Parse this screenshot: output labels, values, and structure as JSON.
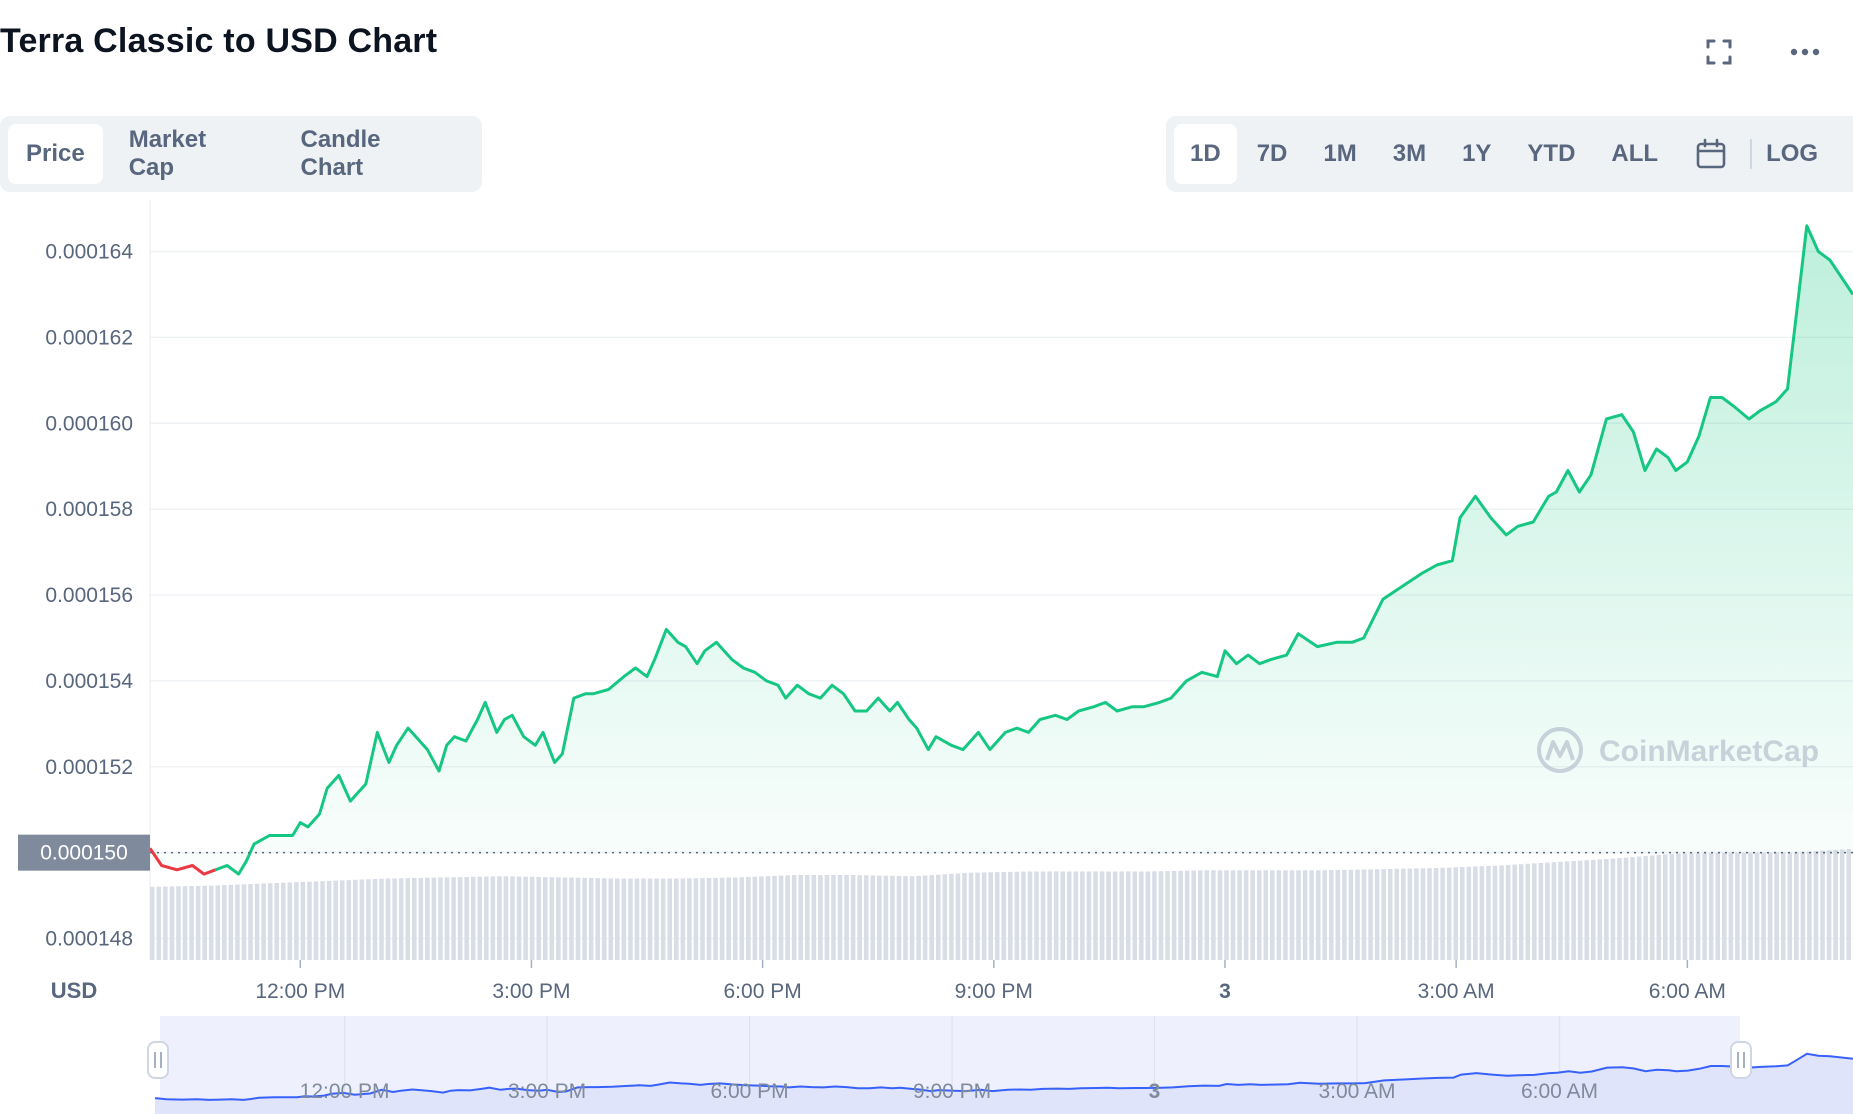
{
  "title": "Terra Classic to USD Chart",
  "tabs": [
    {
      "label": "Price",
      "active": true
    },
    {
      "label": "Market Cap",
      "active": false
    },
    {
      "label": "Candle Chart",
      "active": false
    }
  ],
  "ranges": [
    {
      "label": "1D",
      "active": true
    },
    {
      "label": "7D",
      "active": false
    },
    {
      "label": "1M",
      "active": false
    },
    {
      "label": "3M",
      "active": false
    },
    {
      "label": "1Y",
      "active": false
    },
    {
      "label": "YTD",
      "active": false
    },
    {
      "label": "ALL",
      "active": false
    }
  ],
  "log_label": "LOG",
  "icons": {
    "fullscreen": "expand-icon",
    "more": "more-icon",
    "calendar": "calendar-icon"
  },
  "watermark": "CoinMarketCap",
  "chart_data": {
    "type": "area",
    "currency_label": "USD",
    "y_ticks": [
      "0.000148",
      "0.000150",
      "0.000152",
      "0.000154",
      "0.000156",
      "0.000158",
      "0.000160",
      "0.000162",
      "0.000164"
    ],
    "y_tick_values": [
      0.000148,
      0.00015,
      0.000152,
      0.000154,
      0.000156,
      0.000158,
      0.00016,
      0.000162,
      0.000164
    ],
    "ylim": [
      0.0001475,
      0.0001652
    ],
    "reference_price": 0.00015,
    "reference_label": "0.000150",
    "x_ticks": [
      {
        "label": "12:00 PM",
        "t": 12,
        "bold": false
      },
      {
        "label": "3:00 PM",
        "t": 15,
        "bold": false
      },
      {
        "label": "6:00 PM",
        "t": 18,
        "bold": false
      },
      {
        "label": "9:00 PM",
        "t": 21,
        "bold": false
      },
      {
        "label": "3",
        "t": 24,
        "bold": true
      },
      {
        "label": "3:00 AM",
        "t": 27,
        "bold": false
      },
      {
        "label": "6:00 AM",
        "t": 30,
        "bold": false
      }
    ],
    "xlim": [
      10.05,
      32.15
    ],
    "series": [
      {
        "t": [
          10.05,
          10.2,
          10.4,
          10.6,
          10.75,
          10.9,
          11.05,
          11.2,
          11.3,
          11.4,
          11.5,
          11.6,
          11.75,
          11.9,
          12.0,
          12.1,
          12.25,
          12.35,
          12.5,
          12.65,
          12.75,
          12.85,
          13.0,
          13.15,
          13.25,
          13.4,
          13.5,
          13.65,
          13.8,
          13.9,
          14.0,
          14.15,
          14.3,
          14.4,
          14.55,
          14.65,
          14.75,
          14.9,
          15.05,
          15.15,
          15.3,
          15.4,
          15.55,
          15.7,
          15.8,
          16.0,
          16.2,
          16.35,
          16.5,
          16.6,
          16.75,
          16.9,
          17.0,
          17.15,
          17.25,
          17.4,
          17.6,
          17.75,
          17.9,
          18.05,
          18.2,
          18.3,
          18.45,
          18.6,
          18.75,
          18.9,
          19.05,
          19.2,
          19.35,
          19.5,
          19.65,
          19.75,
          19.9,
          20.0,
          20.15,
          20.25,
          20.45,
          20.6,
          20.8,
          20.95,
          21.15,
          21.3,
          21.45,
          21.6,
          21.8,
          21.95,
          22.1,
          22.3,
          22.45,
          22.6,
          22.8,
          22.95,
          23.15,
          23.3,
          23.5,
          23.7,
          23.9,
          24.0,
          24.15,
          24.3,
          24.45,
          24.6,
          24.8,
          24.95,
          25.2,
          25.45,
          25.65,
          25.8,
          26.05,
          26.3,
          26.55,
          26.75,
          26.95,
          27.05,
          27.25,
          27.45,
          27.65,
          27.8,
          28.0,
          28.2,
          28.3,
          28.45,
          28.6,
          28.75,
          28.95,
          29.15,
          29.3,
          29.45,
          29.6,
          29.75,
          29.85,
          30.0,
          30.15,
          30.3,
          30.45,
          30.6,
          30.8,
          30.95,
          31.15,
          31.3,
          31.4,
          31.55,
          31.7,
          31.85,
          32.15
        ],
        "v": [
          0.0001501,
          0.0001497,
          0.0001496,
          0.0001497,
          0.0001495,
          0.0001496,
          0.0001497,
          0.0001495,
          0.0001498,
          0.0001502,
          0.0001503,
          0.0001504,
          0.0001504,
          0.0001504,
          0.0001507,
          0.0001506,
          0.0001509,
          0.0001515,
          0.0001518,
          0.0001512,
          0.0001514,
          0.0001516,
          0.0001528,
          0.0001521,
          0.0001525,
          0.0001529,
          0.0001527,
          0.0001524,
          0.0001519,
          0.0001525,
          0.0001527,
          0.0001526,
          0.0001531,
          0.0001535,
          0.0001528,
          0.0001531,
          0.0001532,
          0.0001527,
          0.0001525,
          0.0001528,
          0.0001521,
          0.0001523,
          0.0001536,
          0.0001537,
          0.0001537,
          0.0001538,
          0.0001541,
          0.0001543,
          0.0001541,
          0.0001545,
          0.0001552,
          0.0001549,
          0.0001548,
          0.0001544,
          0.0001547,
          0.0001549,
          0.0001545,
          0.0001543,
          0.0001542,
          0.000154,
          0.0001539,
          0.0001536,
          0.0001539,
          0.0001537,
          0.0001536,
          0.0001539,
          0.0001537,
          0.0001533,
          0.0001533,
          0.0001536,
          0.0001533,
          0.0001535,
          0.0001531,
          0.0001529,
          0.0001524,
          0.0001527,
          0.0001525,
          0.0001524,
          0.0001528,
          0.0001524,
          0.0001528,
          0.0001529,
          0.0001528,
          0.0001531,
          0.0001532,
          0.0001531,
          0.0001533,
          0.0001534,
          0.0001535,
          0.0001533,
          0.0001534,
          0.0001534,
          0.0001535,
          0.0001536,
          0.000154,
          0.0001542,
          0.0001541,
          0.0001547,
          0.0001544,
          0.0001546,
          0.0001544,
          0.0001545,
          0.0001546,
          0.0001551,
          0.0001548,
          0.0001549,
          0.0001549,
          0.000155,
          0.0001559,
          0.0001562,
          0.0001565,
          0.0001567,
          0.0001568,
          0.0001578,
          0.0001583,
          0.0001578,
          0.0001574,
          0.0001576,
          0.0001577,
          0.0001583,
          0.0001584,
          0.0001589,
          0.0001584,
          0.0001588,
          0.0001601,
          0.0001602,
          0.0001598,
          0.0001589,
          0.0001594,
          0.0001592,
          0.0001589,
          0.0001591,
          0.0001597,
          0.0001606,
          0.0001606,
          0.0001604,
          0.0001601,
          0.0001603,
          0.0001605,
          0.0001608,
          0.0001623,
          0.0001646,
          0.000164,
          0.0001638,
          0.000163
        ]
      }
    ],
    "volume": [
      0.62,
      0.63,
      0.65,
      0.67,
      0.69,
      0.7,
      0.71,
      0.7,
      0.69,
      0.69,
      0.7,
      0.72,
      0.72,
      0.71,
      0.74,
      0.75,
      0.75,
      0.75,
      0.76,
      0.76,
      0.76,
      0.77,
      0.78,
      0.8,
      0.83,
      0.86,
      0.9,
      0.91,
      0.91,
      0.94
    ],
    "navigator": {
      "x_ticks": [
        "12:00 PM",
        "3:00 PM",
        "6:00 PM",
        "9:00 PM",
        "3",
        "3:00 AM",
        "6:00 AM"
      ]
    }
  }
}
